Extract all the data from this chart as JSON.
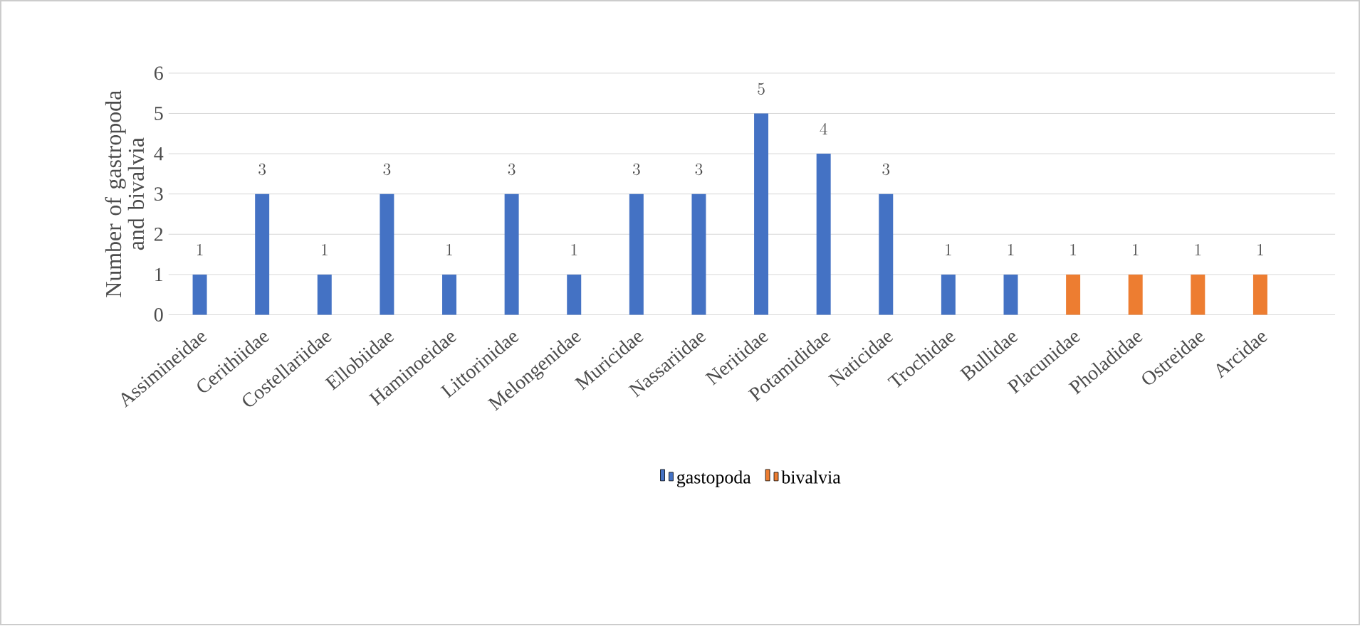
{
  "chart_data": {
    "type": "bar",
    "ylabel": "Number of gastropoda and bivalvia",
    "categories": [
      "Assimineidae",
      "Cerithiidae",
      "Costellariidae",
      "Ellobiidae",
      "Haminoeidae",
      "Littorinidae",
      "Melongenidae",
      "Muricidae",
      "Nassariidae",
      "Neritidae",
      "Potamididae",
      "Naticidae",
      "Trochidae",
      "Bullidae",
      "Placunidae",
      "Pholadidae",
      "Ostreidae",
      "Arcidae"
    ],
    "series": [
      {
        "name": "gastopoda",
        "color": "#4472c4",
        "values": [
          1,
          3,
          1,
          3,
          1,
          3,
          1,
          3,
          3,
          5,
          4,
          3,
          1,
          1,
          null,
          null,
          null,
          null
        ]
      },
      {
        "name": "bivalvia",
        "color": "#ed7d31",
        "values": [
          null,
          null,
          null,
          null,
          null,
          null,
          null,
          null,
          null,
          null,
          null,
          null,
          null,
          null,
          1,
          1,
          1,
          1
        ]
      }
    ],
    "ylim": [
      0,
      6
    ],
    "yticks": [
      0,
      1,
      2,
      3,
      4,
      5,
      6
    ],
    "grid": "y",
    "legend": "bottom",
    "data_labels": true
  }
}
